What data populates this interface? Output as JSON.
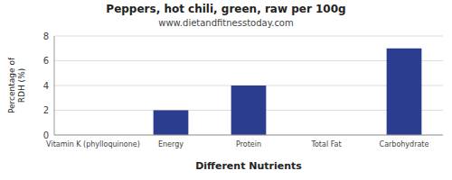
{
  "chart_data": {
    "type": "bar",
    "title": "Peppers, hot chili, green, raw per 100g",
    "subtitle": "www.dietandfitnesstoday.com",
    "xlabel": "Different Nutrients",
    "ylabel": "Percentage of\nRDH (%)",
    "categories": [
      "Vitamin K (phylloquinone)",
      "Energy",
      "Protein",
      "Total Fat",
      "Carbohydrate"
    ],
    "values": [
      0,
      2,
      4,
      0,
      7
    ],
    "color": "#2b3d8f",
    "ylim": [
      0,
      8
    ],
    "yticks": [
      0,
      2,
      4,
      6,
      8
    ],
    "grid": true
  }
}
